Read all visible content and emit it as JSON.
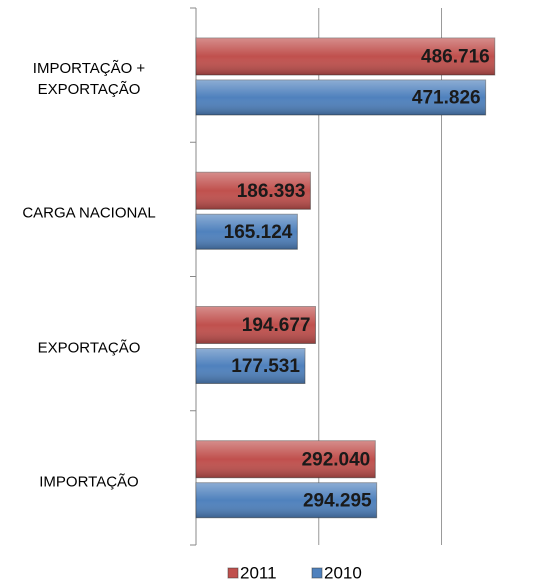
{
  "chart_data": {
    "type": "hbar",
    "categories": [
      "IMPORTAÇÃO +\nEXPORTAÇÃO",
      "CARGA NACIONAL",
      "EXPORTAÇÃO",
      "IMPORTAÇÃO"
    ],
    "series": [
      {
        "name": "2011",
        "color": "#c0504d",
        "values": [
          486716,
          186393,
          194677,
          292040
        ],
        "value_labels": [
          "486.716",
          "186.393",
          "194.677",
          "292.040"
        ]
      },
      {
        "name": "2010",
        "color": "#4f81bd",
        "values": [
          471826,
          165124,
          177531,
          294295
        ],
        "value_labels": [
          "471.826",
          "165.124",
          "177.531",
          "294.295"
        ]
      }
    ],
    "xlim": [
      0,
      580000
    ],
    "xticks": [
      0,
      200000,
      400000
    ],
    "grid": true,
    "legend": "bottom"
  }
}
